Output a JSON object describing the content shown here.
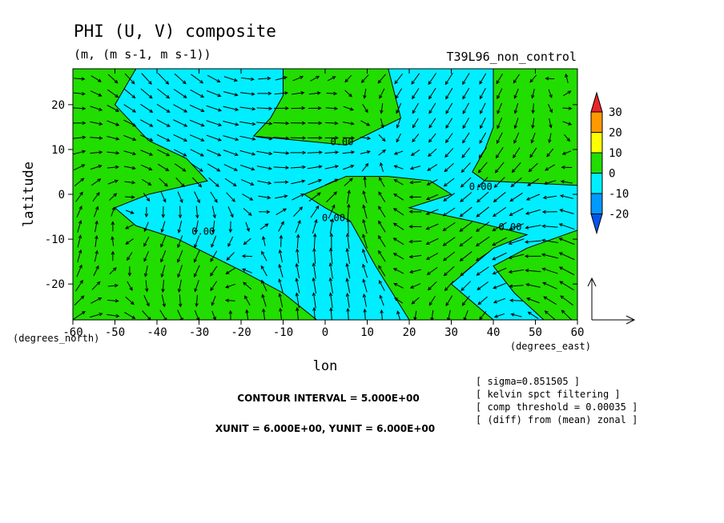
{
  "chart_data": {
    "type": "contour+vector",
    "title": "PHI (U, V) composite",
    "subtitle": "(m, (m s-1, m s-1))",
    "run_label": "T39L96_non_control",
    "xlabel": "lon",
    "ylabel": "latitude",
    "x_unit_label": "(degrees_east)",
    "y_unit_label": "(degrees_north)",
    "xlim": [
      -60,
      60
    ],
    "ylim": [
      -28,
      28
    ],
    "x_ticks": [
      -60,
      -50,
      -40,
      -30,
      -20,
      -10,
      0,
      10,
      20,
      30,
      40,
      50,
      60
    ],
    "x_tick_labels": [
      "-60",
      "-50",
      "-40",
      "-30",
      "-20",
      "-10",
      "0",
      "10",
      "20",
      "30",
      "40",
      "50",
      "60"
    ],
    "y_ticks": [
      -20,
      -10,
      0,
      10,
      20
    ],
    "y_tick_labels": [
      "-20",
      "-10",
      "0",
      "10",
      "20"
    ],
    "colorbar": {
      "levels": [
        30,
        20,
        10,
        0,
        -10,
        -20
      ],
      "labels": [
        "30",
        "20",
        "10",
        "0",
        "-10",
        "-20"
      ],
      "colors": [
        "#e8262a",
        "#ff9900",
        "#ffff00",
        "#22dd00",
        "#00eeff",
        "#0099ff",
        "#0055ee"
      ]
    },
    "fill_colors": {
      "positive": "#22dd00",
      "negative": "#00eeff"
    },
    "contour_label": "0.00",
    "contour_labels": [
      {
        "text": "0.00",
        "lon": 4,
        "lat": 11
      },
      {
        "text": "0.00",
        "lon": 37,
        "lat": 1
      },
      {
        "text": "0.00",
        "lon": 44,
        "lat": -8
      },
      {
        "text": "0.00",
        "lon": -29,
        "lat": -9
      },
      {
        "text": "0.00",
        "lon": 2,
        "lat": -6
      }
    ],
    "positive_regions": [
      [
        [
          -60,
          28
        ],
        [
          -45,
          28
        ],
        [
          -50,
          20
        ],
        [
          -42,
          12
        ],
        [
          -33,
          8
        ],
        [
          -28,
          3
        ],
        [
          -42,
          0
        ],
        [
          -50,
          -3
        ],
        [
          -45,
          -7
        ],
        [
          -35,
          -10
        ],
        [
          -20,
          -17
        ],
        [
          -10,
          -22
        ],
        [
          -2,
          -28
        ],
        [
          -60,
          -28
        ]
      ],
      [
        [
          -10,
          28
        ],
        [
          15,
          28
        ],
        [
          18,
          17
        ],
        [
          5,
          11
        ],
        [
          -17,
          13
        ],
        [
          -13,
          17
        ],
        [
          -10,
          22
        ]
      ],
      [
        [
          -5,
          0
        ],
        [
          5,
          4
        ],
        [
          15,
          4
        ],
        [
          25,
          3
        ],
        [
          30,
          0
        ],
        [
          20,
          -3
        ],
        [
          35,
          -6
        ],
        [
          48,
          -9
        ],
        [
          40,
          -12
        ],
        [
          30,
          -20
        ],
        [
          40,
          -28
        ],
        [
          20,
          -28
        ],
        [
          12,
          -16
        ],
        [
          6,
          -6
        ],
        [
          0,
          -3
        ]
      ],
      [
        [
          40,
          28
        ],
        [
          60,
          28
        ],
        [
          60,
          2
        ],
        [
          38,
          3
        ],
        [
          35,
          5
        ],
        [
          38,
          10
        ],
        [
          40,
          15
        ]
      ],
      [
        [
          40,
          -16
        ],
        [
          48,
          -12
        ],
        [
          60,
          -8
        ],
        [
          60,
          -28
        ],
        [
          52,
          -28
        ],
        [
          45,
          -22
        ]
      ]
    ],
    "vector_reference": {
      "x_unit_label": "XUNIT = 6.000E+00",
      "y_unit_label": "YUNIT = 6.000E+00"
    },
    "contour_interval_label": "CONTOUR INTERVAL = 5.000E+00",
    "annotations": [
      "[ sigma=0.851505 ]",
      "[ kelvin spct filtering ]",
      "[ comp threshold = 0.00035 ]",
      "[ (diff) from (mean) zonal ]"
    ],
    "grid": false
  }
}
